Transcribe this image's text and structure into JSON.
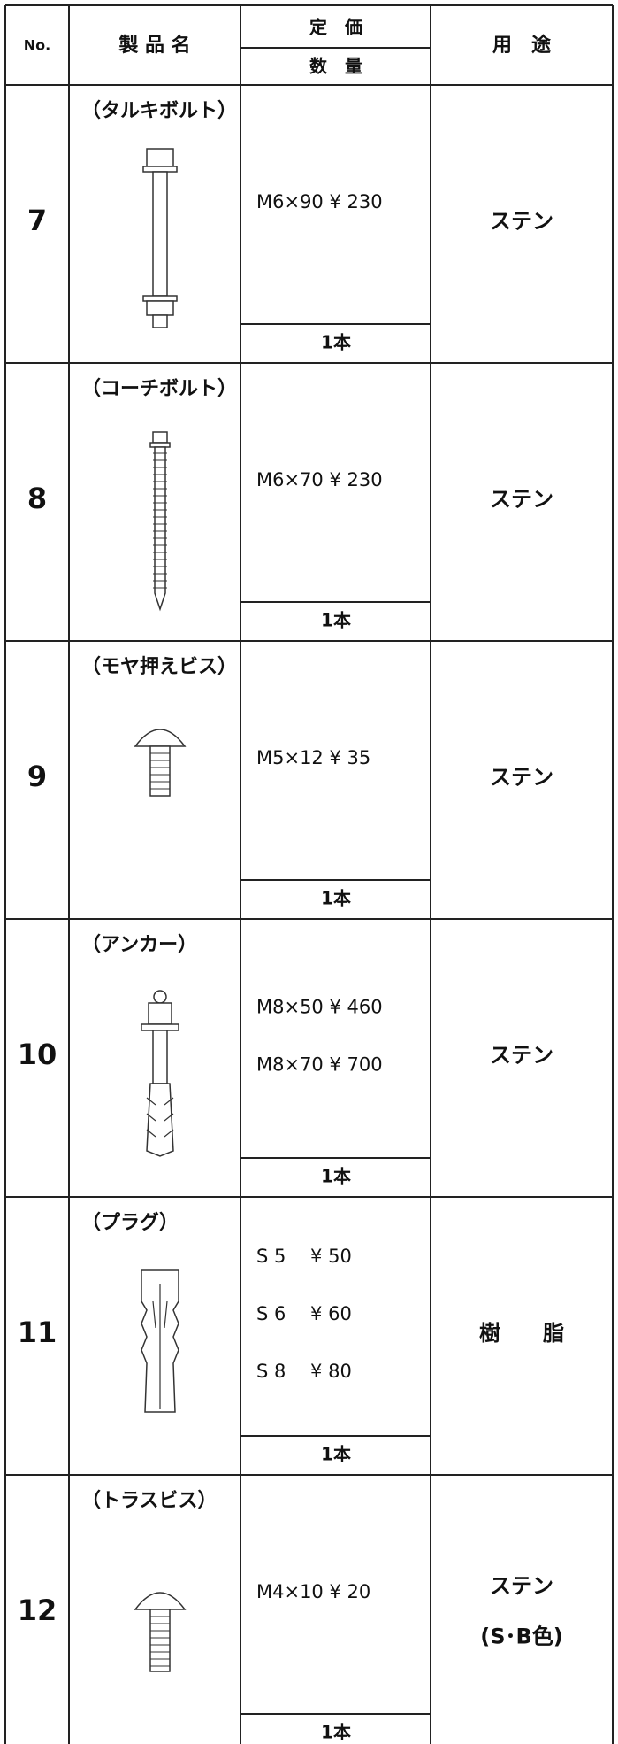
{
  "header": {
    "no": "No.",
    "name": "製 品 名",
    "price": "定　価",
    "quantity": "数　量",
    "use": "用　途"
  },
  "rows": [
    {
      "no": "7",
      "name": "（タルキボルト）",
      "prices": [
        "M6×90 ¥ 230"
      ],
      "quantity": "1本",
      "use": [
        "ステン"
      ]
    },
    {
      "no": "8",
      "name": "（コーチボルト）",
      "prices": [
        "M6×70 ¥ 230"
      ],
      "quantity": "1本",
      "use": [
        "ステン"
      ]
    },
    {
      "no": "9",
      "name": "（モヤ押えビス）",
      "prices": [
        "M5×12 ¥ 35"
      ],
      "quantity": "1本",
      "use": [
        "ステン"
      ]
    },
    {
      "no": "10",
      "name": "（アンカー）",
      "prices": [
        "M8×50 ¥ 460",
        "M8×70 ¥ 700"
      ],
      "quantity": "1本",
      "use": [
        "ステン"
      ]
    },
    {
      "no": "11",
      "name": "（プラグ）",
      "prices": [
        "S 5　 ¥ 50",
        "S 6　 ¥ 60",
        "S 8　 ¥ 80"
      ],
      "quantity": "1本",
      "use": [
        "樹　　脂"
      ]
    },
    {
      "no": "12",
      "name": "（トラスビス）",
      "prices": [
        "M4×10 ¥ 20"
      ],
      "quantity": "1本",
      "use": [
        "ステン",
        "(S･B色)"
      ]
    }
  ]
}
